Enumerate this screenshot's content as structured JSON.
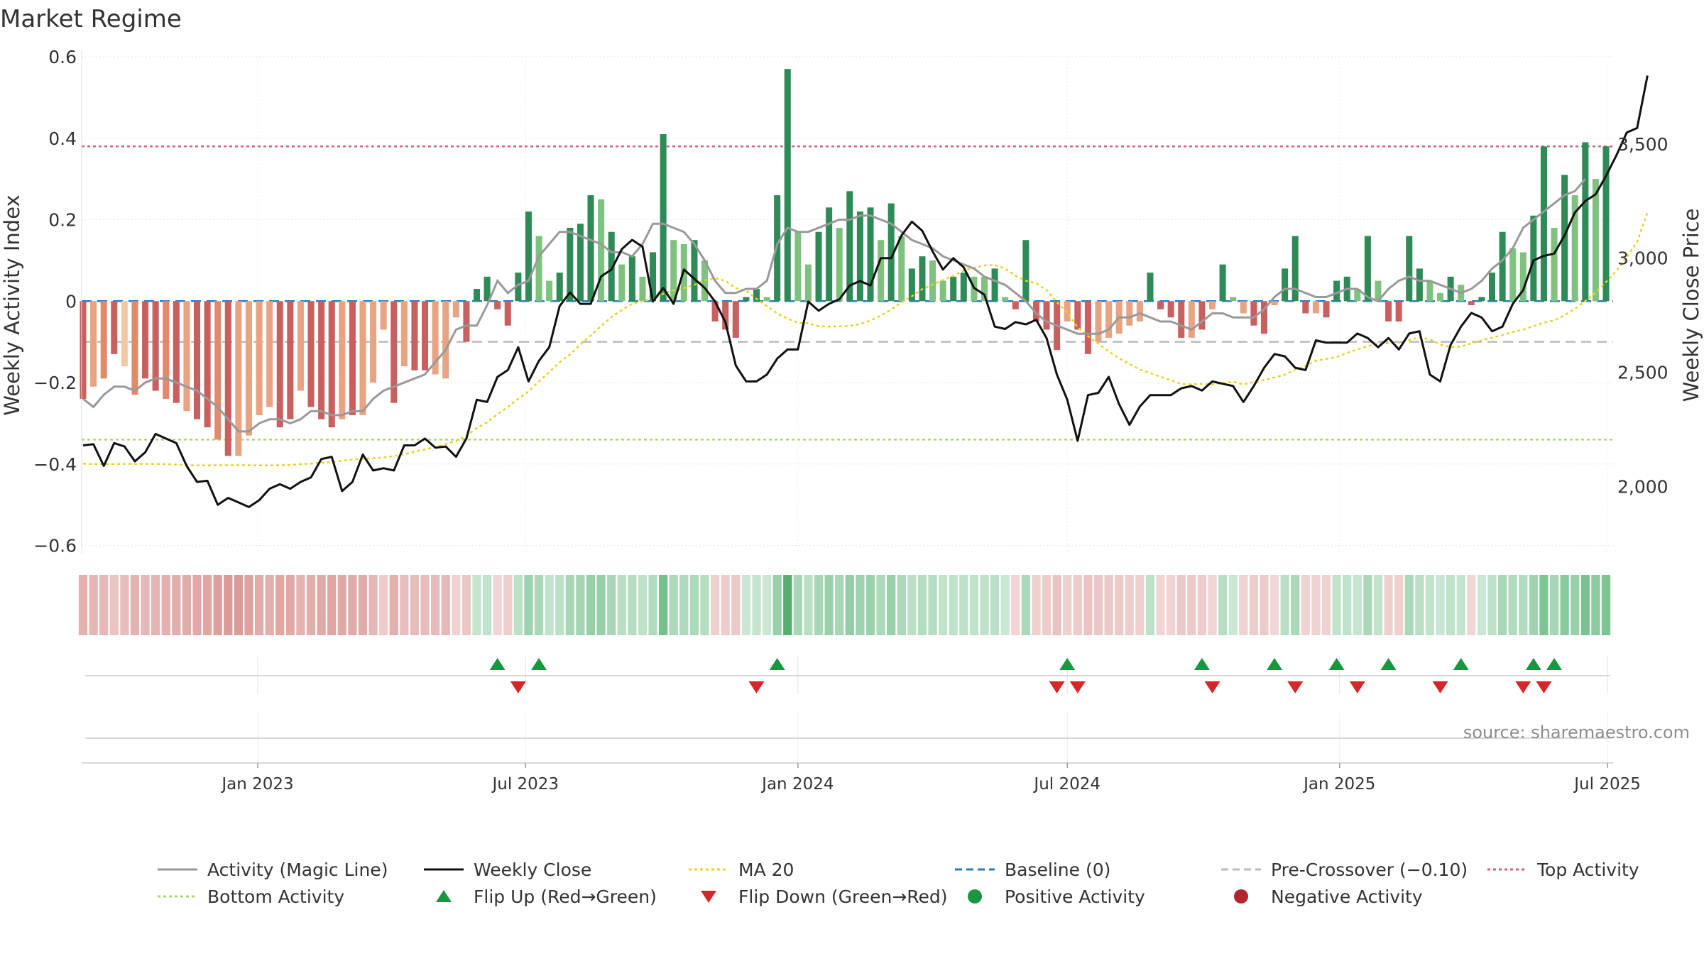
{
  "chart_data": {
    "type": "bar",
    "title": "Market Regime",
    "source_note": "source: sharemaestro.com",
    "x_start": "2022-09-05",
    "x_step_days": 7,
    "x_ticks": [
      {
        "date": "2023-01-01",
        "label": "Jan 2023"
      },
      {
        "date": "2023-07-01",
        "label": "Jul 2023"
      },
      {
        "date": "2024-01-01",
        "label": "Jan 2024"
      },
      {
        "date": "2024-07-01",
        "label": "Jul 2024"
      },
      {
        "date": "2025-01-01",
        "label": "Jan 2025"
      },
      {
        "date": "2025-07-01",
        "label": "Jul 2025"
      }
    ],
    "left_axis": {
      "label": "Weekly Activity Index",
      "ylim": [
        -0.62,
        0.6
      ],
      "ticks": [
        0.6,
        0.4,
        0.2,
        0,
        -0.2,
        -0.4,
        -0.6
      ],
      "tick_labels": [
        "0.6",
        "0.4",
        "0.2",
        "0",
        "−0.2",
        "−0.4",
        "−0.6"
      ]
    },
    "right_axis": {
      "label": "Weekly Close Price",
      "ylim": [
        1706,
        3882
      ],
      "ticks": [
        3500,
        3000,
        2500,
        2000
      ],
      "tick_labels": [
        "3,500",
        "3,000",
        "2,500",
        "2,000"
      ]
    },
    "reference_lines": {
      "top_activity": 0.38,
      "bottom_activity": -0.34,
      "pre_crossover": -0.1,
      "baseline": 0
    },
    "activity": [
      -0.24,
      -0.21,
      -0.19,
      -0.13,
      -0.16,
      -0.23,
      -0.19,
      -0.22,
      -0.24,
      -0.25,
      -0.27,
      -0.29,
      -0.31,
      -0.34,
      -0.38,
      -0.38,
      -0.33,
      -0.28,
      -0.26,
      -0.31,
      -0.29,
      -0.22,
      -0.26,
      -0.29,
      -0.31,
      -0.29,
      -0.28,
      -0.28,
      -0.2,
      -0.07,
      -0.25,
      -0.16,
      -0.17,
      -0.17,
      -0.18,
      -0.19,
      -0.04,
      -0.1,
      0.03,
      0.06,
      -0.02,
      -0.06,
      0.07,
      0.22,
      0.16,
      0.05,
      0.07,
      0.18,
      0.19,
      0.26,
      0.25,
      0.17,
      0.09,
      0.11,
      0.06,
      0.12,
      0.41,
      0.15,
      0.14,
      0.15,
      0.1,
      -0.05,
      -0.07,
      -0.09,
      0.01,
      0.03,
      0.01,
      0.26,
      0.57,
      0.17,
      0.09,
      0.17,
      0.23,
      0.18,
      0.27,
      0.22,
      0.23,
      0.15,
      0.24,
      0.16,
      0.08,
      0.11,
      0.1,
      0.05,
      0.06,
      0.07,
      0.06,
      0.06,
      0.08,
      0.01,
      -0.02,
      0.15,
      -0.05,
      -0.07,
      -0.12,
      -0.05,
      -0.07,
      -0.13,
      -0.1,
      -0.09,
      -0.08,
      -0.06,
      -0.05,
      0.07,
      -0.02,
      -0.04,
      -0.09,
      -0.09,
      -0.07,
      -0.02,
      0.09,
      0.01,
      -0.03,
      -0.06,
      -0.08,
      -0.01,
      0.08,
      0.16,
      -0.03,
      -0.03,
      -0.04,
      0.05,
      0.06,
      0.03,
      0.16,
      0.05,
      -0.05,
      -0.05,
      0.16,
      0.08,
      0.05,
      0.02,
      0.06,
      0.04,
      -0.01,
      0.01,
      0.07,
      0.17,
      0.13,
      0.12,
      0.21,
      0.38,
      0.18,
      0.31,
      0.26,
      0.39,
      0.3,
      0.38
    ],
    "magic_line": [
      -0.24,
      -0.26,
      -0.23,
      -0.21,
      -0.21,
      -0.22,
      -0.2,
      -0.19,
      -0.19,
      -0.2,
      -0.21,
      -0.22,
      -0.24,
      -0.26,
      -0.29,
      -0.32,
      -0.32,
      -0.3,
      -0.29,
      -0.29,
      -0.3,
      -0.29,
      -0.27,
      -0.27,
      -0.28,
      -0.28,
      -0.27,
      -0.27,
      -0.24,
      -0.22,
      -0.21,
      -0.2,
      -0.19,
      -0.18,
      -0.15,
      -0.12,
      -0.07,
      -0.06,
      -0.06,
      -0.01,
      0.05,
      0.02,
      0.04,
      0.05,
      0.11,
      0.14,
      0.17,
      0.17,
      0.16,
      0.15,
      0.14,
      0.12,
      0.12,
      0.11,
      0.14,
      0.19,
      0.19,
      0.18,
      0.17,
      0.14,
      0.1,
      0.05,
      0.02,
      0.02,
      0.03,
      0.03,
      0.05,
      0.14,
      0.18,
      0.17,
      0.17,
      0.18,
      0.19,
      0.2,
      0.2,
      0.21,
      0.21,
      0.2,
      0.19,
      0.17,
      0.15,
      0.14,
      0.13,
      0.11,
      0.1,
      0.09,
      0.08,
      0.06,
      0.05,
      0.04,
      0.02,
      0.0,
      -0.03,
      -0.05,
      -0.06,
      -0.07,
      -0.08,
      -0.08,
      -0.08,
      -0.07,
      -0.04,
      -0.04,
      -0.03,
      -0.04,
      -0.05,
      -0.05,
      -0.06,
      -0.07,
      -0.05,
      -0.03,
      -0.03,
      -0.04,
      -0.04,
      -0.04,
      -0.02,
      0.01,
      0.03,
      0.03,
      0.02,
      0.01,
      0.01,
      0.02,
      0.03,
      0.03,
      0.01,
      0.0,
      0.03,
      0.05,
      0.06,
      0.05,
      0.05,
      0.04,
      0.03,
      0.02,
      0.03,
      0.05,
      0.08,
      0.1,
      0.13,
      0.18,
      0.2,
      0.22,
      0.24,
      0.26,
      0.27,
      0.3
    ],
    "weekly_close": [
      2180,
      2185,
      2090,
      2190,
      2175,
      2110,
      2150,
      2230,
      2210,
      2190,
      2090,
      2020,
      2025,
      1920,
      1950,
      1930,
      1910,
      1940,
      1990,
      2010,
      1990,
      2020,
      2040,
      2120,
      2130,
      1980,
      2020,
      2140,
      2070,
      2080,
      2070,
      2180,
      2180,
      2210,
      2170,
      2175,
      2130,
      2210,
      2380,
      2370,
      2480,
      2510,
      2610,
      2460,
      2550,
      2610,
      2790,
      2850,
      2800,
      2800,
      2920,
      2950,
      3040,
      3080,
      3050,
      2810,
      2870,
      2800,
      2950,
      2910,
      2870,
      2810,
      2720,
      2530,
      2460,
      2460,
      2490,
      2560,
      2600,
      2600,
      2810,
      2770,
      2800,
      2820,
      2880,
      2900,
      2880,
      3000,
      3000,
      3100,
      3160,
      3120,
      3030,
      2950,
      3000,
      2960,
      2870,
      2840,
      2700,
      2690,
      2720,
      2710,
      2730,
      2650,
      2490,
      2380,
      2200,
      2400,
      2410,
      2480,
      2360,
      2270,
      2350,
      2400,
      2400,
      2400,
      2430,
      2440,
      2420,
      2460,
      2450,
      2440,
      2370,
      2440,
      2520,
      2580,
      2570,
      2520,
      2510,
      2640,
      2630,
      2630,
      2630,
      2670,
      2650,
      2610,
      2650,
      2600,
      2670,
      2680,
      2490,
      2460,
      2620,
      2700,
      2760,
      2740,
      2680,
      2700,
      2800,
      2860,
      2990,
      3010,
      3020,
      3100,
      3200,
      3250,
      3280,
      3360,
      3450,
      3550,
      3570,
      3800
    ],
    "ma20": [
      2100,
      2098,
      2098,
      2098,
      2099,
      2099,
      2099,
      2099,
      2098,
      2096,
      2094,
      2092,
      2092,
      2093,
      2093,
      2093,
      2093,
      2092,
      2092,
      2093,
      2094,
      2098,
      2100,
      2105,
      2106,
      2113,
      2118,
      2121,
      2124,
      2127,
      2133,
      2141,
      2153,
      2162,
      2173,
      2186,
      2199,
      2222,
      2256,
      2281,
      2317,
      2348,
      2384,
      2416,
      2460,
      2501,
      2544,
      2578,
      2622,
      2661,
      2703,
      2742,
      2773,
      2800,
      2812,
      2822,
      2844,
      2860,
      2869,
      2883,
      2903,
      2913,
      2900,
      2869,
      2858,
      2822,
      2790,
      2758,
      2735,
      2717,
      2715,
      2702,
      2700,
      2701,
      2704,
      2711,
      2727,
      2748,
      2775,
      2806,
      2833,
      2864,
      2884,
      2904,
      2923,
      2946,
      2958,
      2968,
      2970,
      2955,
      2923,
      2901,
      2890,
      2860,
      2807,
      2762,
      2697,
      2658,
      2625,
      2591,
      2562,
      2536,
      2512,
      2497,
      2480,
      2465,
      2449,
      2447,
      2449,
      2447,
      2453,
      2459,
      2447,
      2457,
      2466,
      2478,
      2489,
      2511,
      2528,
      2551,
      2558,
      2567,
      2585,
      2600,
      2615,
      2625,
      2627,
      2630,
      2641,
      2653,
      2645,
      2622,
      2610,
      2613,
      2627,
      2640,
      2652,
      2663,
      2677,
      2687,
      2702,
      2717,
      2728,
      2750,
      2778,
      2812,
      2850,
      2895,
      2944,
      3005,
      3072,
      3200
    ],
    "bar_colors": [
      "#c95f5f",
      "#e8a383",
      "#e08a6c",
      "#c95f5f",
      "#f2c8a5",
      "#e08a6c",
      "#c95f5f",
      "#c95f5f",
      "#e08a6c",
      "#c95f5f",
      "#e8a383",
      "#c95f5f",
      "#c95f5f",
      "#e08a6c",
      "#c95f5f",
      "#e8a383",
      "#e8a383",
      "#e8a383",
      "#e8a383",
      "#c95f5f",
      "#c95f5f",
      "#e8a383",
      "#c95f5f",
      "#c95f5f",
      "#c95f5f",
      "#e8a383",
      "#c95f5f",
      "#e8a383",
      "#e8a383",
      "#e8a383",
      "#c95f5f",
      "#e8a383",
      "#c95f5f",
      "#c95f5f",
      "#e8a383",
      "#e8a383",
      "#e8a383",
      "#c95f5f",
      "#2e8b57",
      "#2e8b57",
      "#c95f5f",
      "#c95f5f",
      "#2e8b57",
      "#2e8b57",
      "#7fc27f",
      "#7fc27f",
      "#2e8b57",
      "#2e8b57",
      "#2e8b57",
      "#2e8b57",
      "#7fc27f",
      "#2e8b57",
      "#7fc27f",
      "#2e8b57",
      "#7fc27f",
      "#2e8b57",
      "#2e8b57",
      "#7fc27f",
      "#7fc27f",
      "#2e8b57",
      "#7fc27f",
      "#c95f5f",
      "#c95f5f",
      "#c95f5f",
      "#2e8b57",
      "#2e8b57",
      "#7fc27f",
      "#2e8b57",
      "#2e8b57",
      "#7fc27f",
      "#7fc27f",
      "#2e8b57",
      "#2e8b57",
      "#7fc27f",
      "#2e8b57",
      "#2e8b57",
      "#2e8b57",
      "#7fc27f",
      "#2e8b57",
      "#7fc27f",
      "#2e8b57",
      "#2e8b57",
      "#7fc27f",
      "#7fc27f",
      "#2e8b57",
      "#2e8b57",
      "#7fc27f",
      "#7fc27f",
      "#2e8b57",
      "#7fc27f",
      "#c95f5f",
      "#2e8b57",
      "#c95f5f",
      "#c95f5f",
      "#c95f5f",
      "#e8a383",
      "#c95f5f",
      "#c95f5f",
      "#e8a383",
      "#e8a383",
      "#e8a383",
      "#e8a383",
      "#e8a383",
      "#2e8b57",
      "#c95f5f",
      "#c95f5f",
      "#c95f5f",
      "#e8a383",
      "#c95f5f",
      "#e8a383",
      "#2e8b57",
      "#7fc27f",
      "#e8a383",
      "#c95f5f",
      "#c95f5f",
      "#e8a383",
      "#2e8b57",
      "#2e8b57",
      "#c95f5f",
      "#e8a383",
      "#c95f5f",
      "#2e8b57",
      "#2e8b57",
      "#7fc27f",
      "#2e8b57",
      "#7fc27f",
      "#c95f5f",
      "#c95f5f",
      "#2e8b57",
      "#2e8b57",
      "#7fc27f",
      "#7fc27f",
      "#2e8b57",
      "#7fc27f",
      "#c95f5f",
      "#2e8b57",
      "#2e8b57",
      "#2e8b57",
      "#7fc27f",
      "#7fc27f",
      "#2e8b57",
      "#2e8b57",
      "#7fc27f",
      "#2e8b57",
      "#7fc27f",
      "#2e8b57",
      "#7fc27f",
      "#2e8b57"
    ],
    "flip_up_weeks": [
      40,
      44,
      67,
      95,
      108,
      115,
      121,
      126,
      133,
      140,
      142
    ],
    "flip_down_weeks": [
      42,
      65,
      94,
      96,
      109,
      117,
      123,
      131,
      139,
      141
    ],
    "colors": {
      "positive_strong": "#2e8b57",
      "positive_weak": "#7fc27f",
      "negative_strong": "#c95f5f",
      "negative_weak": "#e8a383",
      "magic_line": "#999999",
      "weekly_close": "#111111",
      "ma20": "#e8d32a",
      "baseline": "#2a7ab8",
      "pre_crossover": "#bbbbbb",
      "top_activity": "#d2607a",
      "bottom_activity": "#a9d86e",
      "flip_up": "#1a9641",
      "flip_down": "#d62728",
      "positive_dot": "#1a9641",
      "negative_dot": "#b2262b"
    },
    "legend": [
      {
        "label": "Activity (Magic Line)",
        "kind": "line",
        "color": "#999999",
        "dash": ""
      },
      {
        "label": "Weekly Close",
        "kind": "line",
        "color": "#111111",
        "dash": ""
      },
      {
        "label": "MA 20",
        "kind": "line",
        "color": "#e8d32a",
        "dash": "4 4"
      },
      {
        "label": "Baseline (0)",
        "kind": "line",
        "color": "#2a7ab8",
        "dash": "10 6"
      },
      {
        "label": "Pre-Crossover (−0.10)",
        "kind": "line",
        "color": "#bbbbbb",
        "dash": "10 6"
      },
      {
        "label": "Top Activity",
        "kind": "line",
        "color": "#d2607a",
        "dash": "4 4"
      },
      {
        "label": "Bottom Activity",
        "kind": "line",
        "color": "#a9d86e",
        "dash": "4 4"
      },
      {
        "label": "Flip Up (Red→Green)",
        "kind": "tri-up",
        "color": "#1a9641",
        "dash": ""
      },
      {
        "label": "Flip Down (Green→Red)",
        "kind": "tri-down",
        "color": "#d62728",
        "dash": ""
      },
      {
        "label": "Positive Activity",
        "kind": "dot",
        "color": "#1a9641",
        "dash": ""
      },
      {
        "label": "Negative Activity",
        "kind": "dot",
        "color": "#b2262b",
        "dash": ""
      }
    ]
  }
}
